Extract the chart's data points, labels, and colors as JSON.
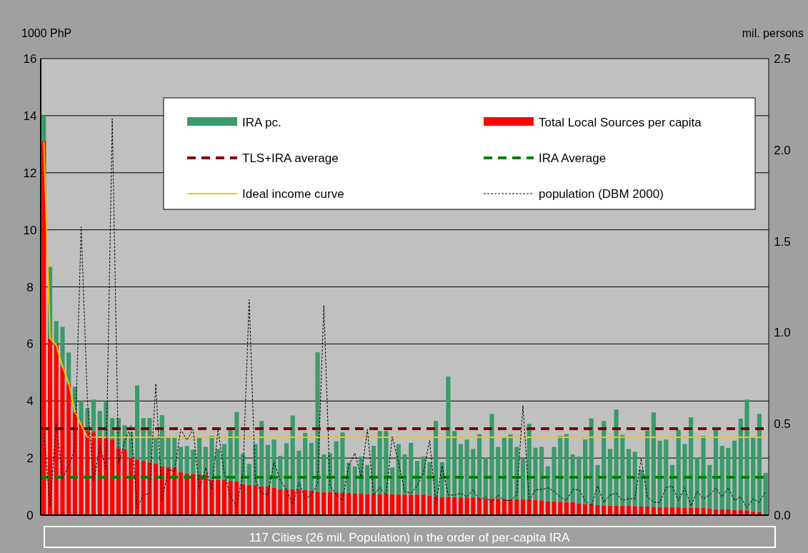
{
  "chart_data": {
    "type": "bar",
    "stacked": true,
    "xlabel": "117 Cities (26 mil. Population) in the order of per-capita IRA",
    "ylabel": "1000 PhP",
    "y2label": "mil. persons",
    "categories": [
      null,
      null,
      null,
      null,
      null,
      null,
      null,
      null,
      null,
      null,
      null,
      null,
      null,
      null,
      null,
      null,
      null,
      null,
      null,
      null,
      null,
      null,
      null,
      null,
      null,
      null,
      null,
      null,
      null,
      null,
      null,
      null,
      null,
      null,
      null,
      null,
      null,
      null,
      null,
      null,
      null,
      null,
      null,
      null,
      null,
      null,
      null,
      null,
      null,
      null,
      null,
      null,
      null,
      null,
      null,
      null,
      null,
      null,
      null,
      null,
      null,
      null,
      null,
      null,
      null,
      null,
      null,
      null,
      null,
      null,
      null,
      null,
      null,
      null,
      null,
      null,
      null,
      null,
      null,
      null,
      null,
      null,
      null,
      null,
      null,
      null,
      null,
      null,
      null,
      null,
      null,
      null,
      null,
      null,
      null,
      null,
      null,
      null,
      null,
      null,
      null,
      null,
      null,
      null,
      null,
      null,
      null,
      null,
      null,
      null,
      null,
      null,
      null,
      null,
      null,
      null,
      null
    ],
    "ylim": [
      0,
      16
    ],
    "yticks": [
      0,
      2,
      4,
      6,
      8,
      10,
      12,
      14,
      16
    ],
    "y2lim": [
      0,
      2.5
    ],
    "y2ticks": [
      {
        "value": 0,
        "label": "0.0"
      },
      0.5,
      {
        "value": 1,
        "label": "1.0"
      },
      1.5,
      {
        "value": 2,
        "label": "2.0"
      },
      2.5
    ],
    "grid": "y",
    "legend": "top",
    "series": [
      {
        "name": "Total Local Sources per capita",
        "color": "#ff0000",
        "values": [
          13.1,
          6.2,
          6.0,
          5.2,
          4.6,
          3.6,
          3.2,
          2.95,
          2.9,
          2.75,
          2.7,
          2.65,
          2.35,
          2.3,
          2.0,
          1.95,
          1.9,
          1.85,
          1.8,
          1.7,
          1.69,
          1.67,
          1.5,
          1.46,
          1.44,
          1.43,
          1.42,
          1.23,
          1.23,
          1.23,
          1.2,
          1.18,
          1.08,
          1.05,
          1.05,
          1.0,
          1.0,
          0.96,
          0.9,
          0.9,
          0.9,
          0.9,
          0.88,
          0.86,
          0.82,
          0.8,
          0.8,
          0.8,
          0.78,
          0.78,
          0.77,
          0.75,
          0.74,
          0.74,
          0.74,
          0.74,
          0.74,
          0.72,
          0.72,
          0.72,
          0.72,
          0.72,
          0.68,
          0.66,
          0.64,
          0.64,
          0.63,
          0.62,
          0.62,
          0.62,
          0.61,
          0.58,
          0.58,
          0.58,
          0.57,
          0.56,
          0.56,
          0.56,
          0.55,
          0.53,
          0.52,
          0.48,
          0.48,
          0.47,
          0.46,
          0.45,
          0.4,
          0.38,
          0.38,
          0.35,
          0.34,
          0.33,
          0.33,
          0.33,
          0.33,
          0.32,
          0.3,
          0.3,
          0.29,
          0.28,
          0.28,
          0.28,
          0.27,
          0.26,
          0.25,
          0.25,
          0.25,
          0.24,
          0.21,
          0.2,
          0.2,
          0.18,
          0.18,
          0.17,
          0.13,
          0.1,
          0.02
        ]
      },
      {
        "name": "IRA pc.",
        "color": "#3a9a6a",
        "values": [
          0.9,
          2.5,
          0.8,
          1.4,
          1.1,
          0.9,
          0.8,
          0.8,
          1.15,
          0.9,
          1.3,
          0.75,
          1.05,
          0.85,
          0.9,
          2.6,
          1.5,
          1.55,
          0.9,
          1.8,
          1.05,
          1.08,
          0.89,
          0.96,
          0.86,
          1.32,
          0.97,
          1.55,
          1.09,
          1.26,
          1.78,
          2.43,
          1.07,
          0.75,
          1.44,
          2.3,
          1.46,
          1.69,
          1.18,
          1.62,
          2.59,
          1.36,
          2.0,
          1.67,
          4.89,
          1.33,
          1.37,
          1.79,
          2.12,
          1.06,
          0.94,
          1.3,
          1.02,
          1.69,
          2.21,
          2.21,
          0.93,
          1.77,
          1.41,
          1.81,
          1.18,
          1.33,
          1.18,
          2.64,
          1.22,
          4.22,
          2.32,
          1.87,
          2.03,
          1.7,
          2.23,
          1.42,
          2.97,
          1.81,
          2.18,
          2.27,
          1.83,
          1.41,
          2.65,
          1.83,
          1.87,
          1.23,
          1.91,
          2.31,
          2.38,
          1.68,
          1.65,
          2.27,
          3.01,
          1.41,
          2.96,
          1.99,
          3.37,
          2.48,
          1.99,
          1.9,
          1.3,
          2.66,
          3.31,
          2.33,
          2.37,
          1.48,
          2.72,
          2.23,
          3.18,
          1.76,
          2.53,
          1.52,
          2.77,
          2.23,
          2.15,
          2.43,
          3.2,
          3.88,
          2.59,
          3.45,
          1.46
        ]
      },
      {
        "name": "Ideal income curve",
        "type": "line",
        "color": "#ffc000",
        "line_style": "solid",
        "values": [
          13.07,
          6.2,
          5.96,
          5.21,
          4.63,
          3.63,
          3.16,
          2.73,
          2.73,
          2.73,
          2.73,
          2.73,
          2.73,
          2.73,
          2.73,
          2.73,
          2.73,
          2.73,
          2.73,
          2.73,
          2.73,
          2.73,
          2.73,
          2.73,
          2.73,
          2.73,
          2.73,
          2.73,
          2.73,
          2.73,
          2.73,
          2.73,
          2.73,
          2.73,
          2.73,
          2.73,
          2.73,
          2.73,
          2.73,
          2.73,
          2.73,
          2.73,
          2.73,
          2.73,
          2.73,
          2.73,
          2.73,
          2.73,
          2.73,
          2.73,
          2.73,
          2.73,
          2.73,
          2.73,
          2.73,
          2.73,
          2.73,
          2.73,
          2.73,
          2.73,
          2.73,
          2.73,
          2.73,
          2.73,
          2.73,
          2.73,
          2.73,
          2.73,
          2.73,
          2.73,
          2.73,
          2.73,
          2.73,
          2.73,
          2.73,
          2.73,
          2.73,
          2.73,
          2.73,
          2.73,
          2.73,
          2.73,
          2.73,
          2.73,
          2.73,
          2.73,
          2.73,
          2.73,
          2.73,
          2.73,
          2.73,
          2.73,
          2.73,
          2.73,
          2.73,
          2.73,
          2.73,
          2.73,
          2.73,
          2.73,
          2.73,
          2.73,
          2.73,
          2.73,
          2.73,
          2.73,
          2.73,
          2.73,
          2.73,
          2.73,
          2.73,
          2.73,
          2.73,
          2.73,
          2.73,
          2.73,
          2.73
        ]
      },
      {
        "name": "population (DBM 2000)",
        "type": "line",
        "axis": "y2",
        "color": "#000000",
        "line_style": "dashed",
        "values": [
          0.45,
          0.05,
          0.5,
          0.2,
          0.27,
          0.36,
          1.58,
          0.63,
          0.18,
          0.38,
          0.25,
          2.17,
          0.28,
          0.4,
          0.49,
          0.04,
          0.11,
          0.12,
          0.72,
          0.08,
          0.25,
          0.24,
          0.47,
          0.41,
          0.47,
          0.14,
          0.26,
          0.14,
          0.47,
          0.23,
          0.1,
          0.05,
          0.23,
          1.18,
          0.19,
          0.12,
          0.11,
          0.29,
          0.19,
          0.14,
          0.06,
          0.18,
          0.09,
          0.11,
          0.17,
          1.15,
          0.16,
          0.11,
          0.08,
          0.27,
          0.34,
          0.21,
          0.47,
          0.11,
          0.15,
          0.11,
          0.43,
          0.29,
          0.13,
          0.12,
          0.16,
          0.23,
          0.41,
          0.06,
          0.27,
          0.11,
          0.11,
          0.12,
          0.1,
          0.14,
          0.08,
          0.1,
          0.07,
          0.11,
          0.08,
          0.08,
          0.11,
          0.6,
          0.08,
          0.14,
          0.14,
          0.15,
          0.13,
          0.1,
          0.08,
          0.14,
          0.14,
          0.08,
          0.05,
          0.16,
          0.07,
          0.11,
          0.12,
          0.08,
          0.09,
          0.09,
          0.31,
          0.1,
          0.07,
          0.07,
          0.15,
          0.16,
          0.08,
          0.15,
          0.05,
          0.13,
          0.09,
          0.11,
          0.15,
          0.1,
          0.15,
          0.08,
          0.1,
          0.04,
          0.09,
          0.07,
          0.13
        ]
      }
    ],
    "ref_lines": [
      {
        "axis": "y",
        "value": 3.03,
        "label": "TLS+IRA average",
        "color": "#800000",
        "line_style": "dashed"
      },
      {
        "axis": "y",
        "value": 1.33,
        "label": "IRA Average",
        "color": "#008000",
        "line_style": "dashed"
      }
    ]
  }
}
